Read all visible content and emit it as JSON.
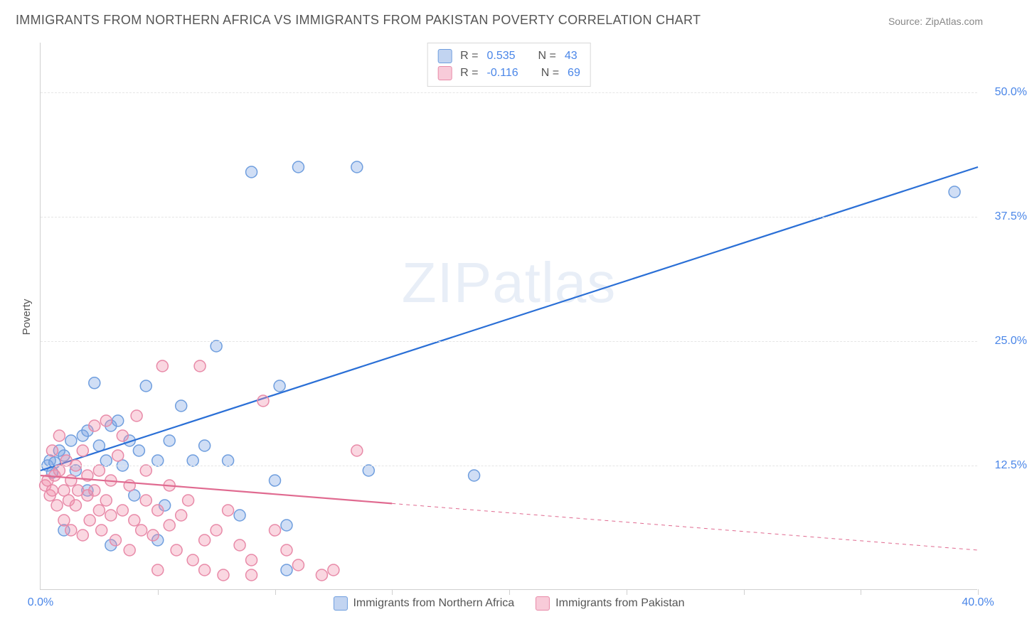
{
  "title": "IMMIGRANTS FROM NORTHERN AFRICA VS IMMIGRANTS FROM PAKISTAN POVERTY CORRELATION CHART",
  "source": "Source: ZipAtlas.com",
  "watermark": "ZIPatlas",
  "ylabel": "Poverty",
  "chart": {
    "type": "scatter",
    "xlim": [
      0,
      40
    ],
    "ylim": [
      0,
      55
    ],
    "x_ticks_labeled": [
      {
        "v": 0,
        "label": "0.0%"
      },
      {
        "v": 40,
        "label": "40.0%"
      }
    ],
    "x_ticks_minor": [
      5,
      10,
      15,
      20,
      25,
      30,
      35,
      40
    ],
    "y_ticks": [
      {
        "v": 12.5,
        "label": "12.5%"
      },
      {
        "v": 25.0,
        "label": "25.0%"
      },
      {
        "v": 37.5,
        "label": "37.5%"
      },
      {
        "v": 50.0,
        "label": "50.0%"
      }
    ],
    "grid_color": "#e5e5e5",
    "background_color": "#ffffff",
    "axis_color": "#d0d0d0",
    "tick_label_color": "#4a86e8",
    "tick_fontsize": 16,
    "title_fontsize": 18,
    "title_color": "#555555",
    "marker_radius": 8,
    "marker_stroke_width": 1.5,
    "line_width": 2.2,
    "series": [
      {
        "name": "Immigrants from Northern Africa",
        "color_fill": "rgba(120,160,225,0.35)",
        "color_stroke": "#6f9ede",
        "line_color": "#2a6fd6",
        "R": "0.535",
        "N": "43",
        "trend": {
          "x1": 0,
          "y1": 12.0,
          "x2": 40,
          "y2": 42.5,
          "dash_from_x": null
        },
        "points": [
          [
            0.3,
            12.5
          ],
          [
            0.4,
            13.0
          ],
          [
            0.5,
            11.8
          ],
          [
            0.6,
            12.8
          ],
          [
            0.8,
            14.0
          ],
          [
            1.0,
            13.5
          ],
          [
            1.3,
            15.0
          ],
          [
            1.5,
            12.0
          ],
          [
            1.8,
            15.5
          ],
          [
            2.0,
            16.0
          ],
          [
            2.3,
            20.8
          ],
          [
            1.0,
            6.0
          ],
          [
            2.5,
            14.5
          ],
          [
            2.8,
            13.0
          ],
          [
            3.0,
            16.5
          ],
          [
            3.3,
            17.0
          ],
          [
            3.5,
            12.5
          ],
          [
            3.8,
            15.0
          ],
          [
            4.2,
            14.0
          ],
          [
            4.5,
            20.5
          ],
          [
            5.0,
            13.0
          ],
          [
            5.3,
            8.5
          ],
          [
            5.0,
            5.0
          ],
          [
            5.5,
            15.0
          ],
          [
            6.0,
            18.5
          ],
          [
            6.5,
            13.0
          ],
          [
            7.0,
            14.5
          ],
          [
            7.5,
            24.5
          ],
          [
            8.0,
            13.0
          ],
          [
            8.5,
            7.5
          ],
          [
            9.0,
            42.0
          ],
          [
            10.0,
            11.0
          ],
          [
            10.2,
            20.5
          ],
          [
            10.5,
            6.5
          ],
          [
            11.0,
            42.5
          ],
          [
            10.5,
            2.0
          ],
          [
            13.5,
            42.5
          ],
          [
            14.0,
            12.0
          ],
          [
            18.5,
            11.5
          ],
          [
            39.0,
            40.0
          ],
          [
            3.0,
            4.5
          ],
          [
            4.0,
            9.5
          ],
          [
            2.0,
            10.0
          ]
        ]
      },
      {
        "name": "Immigrants from Pakistan",
        "color_fill": "rgba(240,140,170,0.35)",
        "color_stroke": "#e88aa8",
        "line_color": "#e06a90",
        "R": "-0.116",
        "N": "69",
        "trend": {
          "x1": 0,
          "y1": 11.5,
          "x2": 40,
          "y2": 4.0,
          "dash_from_x": 15
        },
        "points": [
          [
            0.2,
            10.5
          ],
          [
            0.3,
            11.0
          ],
          [
            0.4,
            9.5
          ],
          [
            0.5,
            10.0
          ],
          [
            0.5,
            14.0
          ],
          [
            0.6,
            11.5
          ],
          [
            0.7,
            8.5
          ],
          [
            0.8,
            12.0
          ],
          [
            0.8,
            15.5
          ],
          [
            1.0,
            10.0
          ],
          [
            1.0,
            7.0
          ],
          [
            1.1,
            13.0
          ],
          [
            1.2,
            9.0
          ],
          [
            1.3,
            11.0
          ],
          [
            1.3,
            6.0
          ],
          [
            1.5,
            8.5
          ],
          [
            1.5,
            12.5
          ],
          [
            1.6,
            10.0
          ],
          [
            1.8,
            5.5
          ],
          [
            1.8,
            14.0
          ],
          [
            2.0,
            9.5
          ],
          [
            2.0,
            11.5
          ],
          [
            2.1,
            7.0
          ],
          [
            2.3,
            10.0
          ],
          [
            2.3,
            16.5
          ],
          [
            2.5,
            8.0
          ],
          [
            2.5,
            12.0
          ],
          [
            2.6,
            6.0
          ],
          [
            2.8,
            9.0
          ],
          [
            2.8,
            17.0
          ],
          [
            3.0,
            7.5
          ],
          [
            3.0,
            11.0
          ],
          [
            3.2,
            5.0
          ],
          [
            3.3,
            13.5
          ],
          [
            3.5,
            8.0
          ],
          [
            3.5,
            15.5
          ],
          [
            3.8,
            4.0
          ],
          [
            3.8,
            10.5
          ],
          [
            4.0,
            7.0
          ],
          [
            4.1,
            17.5
          ],
          [
            4.3,
            6.0
          ],
          [
            4.5,
            9.0
          ],
          [
            4.5,
            12.0
          ],
          [
            4.8,
            5.5
          ],
          [
            5.0,
            8.0
          ],
          [
            5.0,
            2.0
          ],
          [
            5.2,
            22.5
          ],
          [
            5.5,
            6.5
          ],
          [
            5.5,
            10.5
          ],
          [
            5.8,
            4.0
          ],
          [
            6.0,
            7.5
          ],
          [
            6.3,
            9.0
          ],
          [
            6.5,
            3.0
          ],
          [
            6.8,
            22.5
          ],
          [
            7.0,
            5.0
          ],
          [
            7.0,
            2.0
          ],
          [
            7.5,
            6.0
          ],
          [
            8.0,
            8.0
          ],
          [
            7.8,
            1.5
          ],
          [
            8.5,
            4.5
          ],
          [
            9.0,
            3.0
          ],
          [
            9.5,
            19.0
          ],
          [
            9.0,
            1.5
          ],
          [
            10.0,
            6.0
          ],
          [
            10.5,
            4.0
          ],
          [
            11.0,
            2.5
          ],
          [
            12.0,
            1.5
          ],
          [
            12.5,
            2.0
          ],
          [
            13.5,
            14.0
          ]
        ]
      }
    ]
  },
  "legend_top": {
    "r_label": "R =",
    "n_label": "N ="
  },
  "legend_bottom": [
    {
      "label": "Immigrants from Northern Africa"
    },
    {
      "label": "Immigrants from Pakistan"
    }
  ]
}
